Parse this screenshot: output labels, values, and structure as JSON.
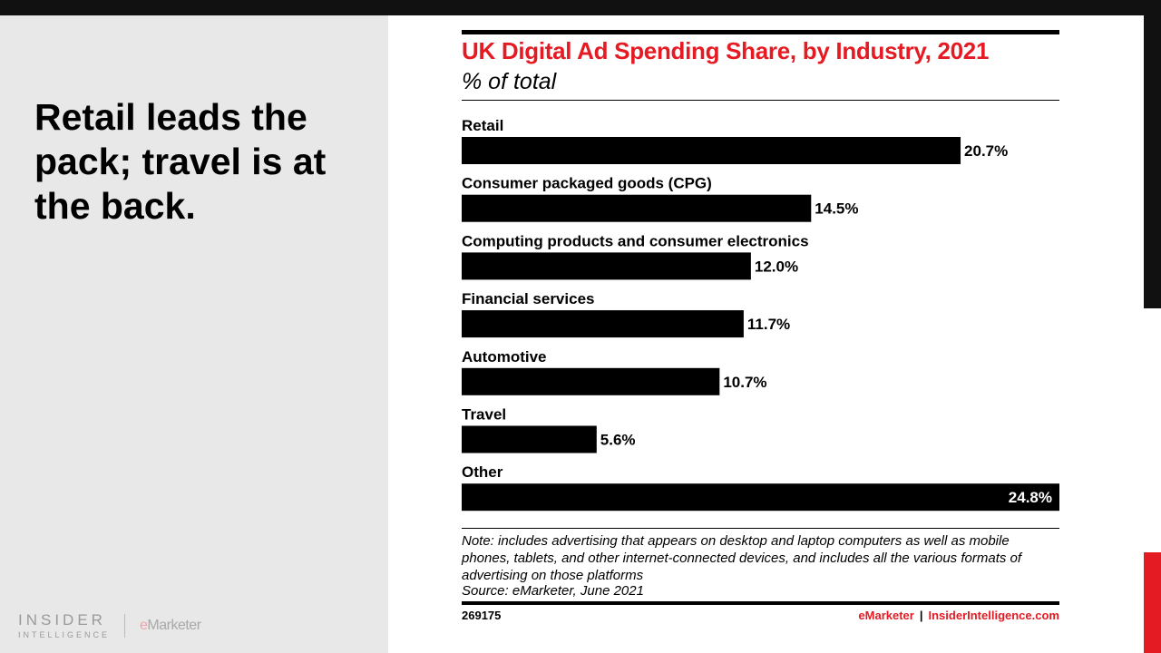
{
  "slide": {
    "headline": "Retail leads the pack; travel is at the back.",
    "brand": {
      "insider": "INSIDER",
      "intelligence": "INTELLIGENCE",
      "emarketer_e": "e",
      "emarketer_rest": "Marketer"
    }
  },
  "card": {
    "note": "Note: includes advertising that appears on desktop and laptop computers as well as mobile phones, tablets, and other internet-connected devices, and includes all the various formats of advertising on those platforms",
    "source": "Source: eMarketer, June 2021",
    "chart_id": "269175",
    "footer_emarketer": "eMarketer",
    "footer_separator": "|",
    "footer_site": "InsiderIntelligence.com"
  },
  "colors": {
    "accent_red": "#e41b23",
    "bar": "#000000"
  },
  "chart_data": {
    "type": "bar",
    "orientation": "horizontal",
    "title": "UK Digital Ad Spending Share, by Industry, 2021",
    "subtitle": "% of total",
    "categories": [
      "Retail",
      "Consumer packaged goods (CPG)",
      "Computing products and consumer electronics",
      "Financial services",
      "Automotive",
      "Travel",
      "Other"
    ],
    "values": [
      20.7,
      14.5,
      12.0,
      11.7,
      10.7,
      5.6,
      24.8
    ],
    "value_labels": [
      "20.7%",
      "14.5%",
      "12.0%",
      "11.7%",
      "10.7%",
      "5.6%",
      "24.8%"
    ],
    "xlim": [
      0,
      24.8
    ],
    "grid": false,
    "legend": "none"
  }
}
